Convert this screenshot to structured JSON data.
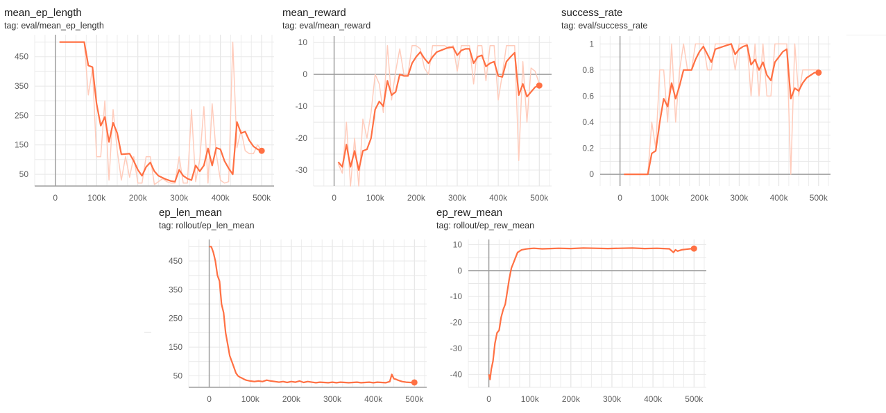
{
  "colors": {
    "line": "#ff7043",
    "raw_line": "#ffccbc",
    "grid": "#e0e0e0",
    "axis": "#9e9e9e",
    "tick_text": "#616161"
  },
  "chart_data": [
    {
      "type": "line",
      "title": "mean_ep_length",
      "tag": "tag: eval/mean_ep_length",
      "xlim": [
        -50000,
        530000
      ],
      "ylim": [
        10,
        525
      ],
      "xticks": [
        0,
        100000,
        200000,
        300000,
        400000,
        500000
      ],
      "xtick_labels": [
        "0",
        "100k",
        "200k",
        "300k",
        "400k",
        "500k"
      ],
      "yticks": [
        50,
        150,
        250,
        350,
        450
      ],
      "ytick_labels": [
        "50",
        "150",
        "250",
        "350",
        "450"
      ],
      "grid": true,
      "series": [
        {
          "role": "smoothed",
          "x": [
            10000,
            70000,
            80000,
            90000,
            100000,
            110000,
            120000,
            130000,
            140000,
            150000,
            160000,
            180000,
            190000,
            200000,
            210000,
            220000,
            230000,
            240000,
            250000,
            260000,
            270000,
            280000,
            290000,
            300000,
            310000,
            320000,
            330000,
            340000,
            350000,
            360000,
            370000,
            380000,
            390000,
            400000,
            410000,
            420000,
            430000,
            440000,
            450000,
            460000,
            470000,
            480000,
            490000,
            500000
          ],
          "y": [
            500,
            500,
            420,
            415,
            290,
            215,
            245,
            160,
            225,
            190,
            118,
            120,
            95,
            65,
            45,
            75,
            90,
            60,
            45,
            38,
            32,
            27,
            25,
            65,
            45,
            35,
            30,
            80,
            60,
            80,
            138,
            80,
            140,
            135,
            95,
            70,
            50,
            228,
            190,
            195,
            165,
            145,
            135,
            130
          ]
        },
        {
          "role": "raw",
          "x": [
            10000,
            70000,
            80000,
            90000,
            100000,
            110000,
            120000,
            130000,
            140000,
            150000,
            160000,
            170000,
            180000,
            190000,
            200000,
            210000,
            220000,
            230000,
            240000,
            250000,
            260000,
            270000,
            280000,
            290000,
            300000,
            310000,
            320000,
            330000,
            340000,
            350000,
            360000,
            370000,
            380000,
            390000,
            400000,
            410000,
            420000,
            430000,
            440000,
            450000,
            460000,
            470000,
            480000,
            490000,
            500000
          ],
          "y": [
            500,
            500,
            320,
            410,
            110,
            110,
            300,
            30,
            270,
            130,
            30,
            110,
            40,
            110,
            20,
            20,
            110,
            110,
            15,
            25,
            35,
            25,
            20,
            20,
            110,
            20,
            20,
            270,
            25,
            100,
            280,
            20,
            290,
            120,
            30,
            20,
            25,
            500,
            140,
            200,
            130,
            120,
            120,
            150,
            130
          ]
        }
      ]
    },
    {
      "type": "line",
      "title": "mean_reward",
      "tag": "tag: eval/mean_reward",
      "xlim": [
        -50000,
        530000
      ],
      "ylim": [
        -35,
        12
      ],
      "xticks": [
        0,
        100000,
        200000,
        300000,
        400000,
        500000
      ],
      "xtick_labels": [
        "0",
        "100k",
        "200k",
        "300k",
        "400k",
        "500k"
      ],
      "yticks": [
        -30,
        -20,
        -10,
        0,
        10
      ],
      "ytick_labels": [
        "-30",
        "-20",
        "-10",
        "0",
        "10"
      ],
      "grid": true,
      "series": [
        {
          "role": "smoothed",
          "x": [
            10000,
            20000,
            30000,
            40000,
            50000,
            60000,
            70000,
            80000,
            90000,
            100000,
            110000,
            120000,
            130000,
            140000,
            150000,
            160000,
            170000,
            180000,
            190000,
            200000,
            210000,
            220000,
            230000,
            240000,
            250000,
            260000,
            270000,
            280000,
            290000,
            300000,
            310000,
            320000,
            330000,
            340000,
            350000,
            360000,
            370000,
            380000,
            390000,
            400000,
            410000,
            420000,
            430000,
            440000,
            450000,
            460000,
            470000,
            480000,
            490000,
            500000
          ],
          "y": [
            -27.5,
            -29,
            -22,
            -29,
            -24,
            -30,
            -24,
            -23.5,
            -20,
            -11,
            -8.5,
            -10,
            -2,
            -6.5,
            -5.5,
            0,
            -0.5,
            -0.5,
            3.5,
            5.5,
            7,
            5,
            3.5,
            5.5,
            7,
            7.5,
            8,
            8.5,
            8.5,
            6,
            7.5,
            8,
            8,
            3.5,
            5.5,
            6,
            2.5,
            3.5,
            4,
            -0.5,
            -0.8,
            4,
            5.5,
            6.8,
            -6.5,
            -3,
            -7,
            -5.5,
            -4,
            -3.5
          ]
        },
        {
          "role": "raw",
          "x": [
            10000,
            20000,
            30000,
            40000,
            50000,
            60000,
            70000,
            80000,
            90000,
            100000,
            110000,
            120000,
            130000,
            140000,
            150000,
            160000,
            170000,
            180000,
            190000,
            200000,
            210000,
            220000,
            230000,
            240000,
            250000,
            260000,
            270000,
            280000,
            290000,
            300000,
            310000,
            320000,
            330000,
            340000,
            350000,
            360000,
            370000,
            380000,
            390000,
            400000,
            410000,
            420000,
            430000,
            440000,
            450000,
            460000,
            470000,
            480000,
            490000,
            500000
          ],
          "y": [
            -28,
            -31,
            -15,
            -35,
            -20,
            -35,
            -14,
            -20,
            -12,
            0,
            -3,
            -12,
            9,
            -8,
            1,
            8,
            0,
            0,
            9,
            9,
            8,
            2,
            0,
            9,
            9,
            9,
            9,
            8,
            9,
            1,
            9,
            9,
            9,
            -3,
            9,
            9,
            -2,
            9,
            9,
            -8,
            0,
            9,
            9,
            9,
            -27,
            4,
            -15,
            2,
            1,
            -3
          ]
        }
      ]
    },
    {
      "type": "line",
      "title": "success_rate",
      "tag": "tag: eval/success_rate",
      "xlim": [
        -50000,
        530000
      ],
      "ylim": [
        -0.09,
        1.06
      ],
      "xticks": [
        0,
        100000,
        200000,
        300000,
        400000,
        500000
      ],
      "xtick_labels": [
        "0",
        "100k",
        "200k",
        "300k",
        "400k",
        "500k"
      ],
      "yticks": [
        0,
        0.2,
        0.4,
        0.6,
        0.8,
        1
      ],
      "ytick_labels": [
        "0",
        "0.2",
        "0.4",
        "0.6",
        "0.8",
        "1"
      ],
      "grid": true,
      "series": [
        {
          "role": "smoothed",
          "x": [
            10000,
            70000,
            80000,
            90000,
            100000,
            110000,
            120000,
            130000,
            140000,
            150000,
            160000,
            170000,
            180000,
            190000,
            200000,
            210000,
            220000,
            230000,
            240000,
            250000,
            260000,
            270000,
            280000,
            290000,
            300000,
            310000,
            320000,
            330000,
            340000,
            350000,
            360000,
            370000,
            380000,
            390000,
            400000,
            410000,
            420000,
            430000,
            440000,
            450000,
            460000,
            470000,
            480000,
            490000,
            500000
          ],
          "y": [
            0,
            0,
            0.16,
            0.18,
            0.4,
            0.58,
            0.52,
            0.7,
            0.58,
            0.68,
            0.8,
            0.8,
            0.8,
            0.88,
            0.94,
            0.98,
            0.92,
            0.86,
            0.96,
            0.97,
            0.98,
            0.99,
            1.0,
            0.92,
            0.96,
            0.98,
            0.99,
            0.84,
            0.88,
            0.8,
            0.86,
            0.76,
            0.72,
            0.86,
            0.9,
            0.94,
            0.96,
            0.58,
            0.66,
            0.64,
            0.7,
            0.74,
            0.76,
            0.78,
            0.78
          ]
        },
        {
          "role": "raw",
          "x": [
            10000,
            70000,
            80000,
            90000,
            100000,
            110000,
            120000,
            130000,
            140000,
            150000,
            160000,
            170000,
            180000,
            190000,
            200000,
            210000,
            220000,
            230000,
            240000,
            250000,
            260000,
            270000,
            280000,
            290000,
            300000,
            310000,
            320000,
            330000,
            340000,
            350000,
            360000,
            370000,
            380000,
            390000,
            400000,
            410000,
            420000,
            430000,
            440000,
            450000,
            460000,
            470000,
            480000,
            490000,
            500000
          ],
          "y": [
            0,
            0,
            0.4,
            0.2,
            0.8,
            0.8,
            0.4,
            1.0,
            0.4,
            0.8,
            1.0,
            0.8,
            0.8,
            1.0,
            1.0,
            1.0,
            0.8,
            0.8,
            1.0,
            1.0,
            1.0,
            1.0,
            1.0,
            0.8,
            1.0,
            1.0,
            1.0,
            0.6,
            1.0,
            0.6,
            1.0,
            0.6,
            0.6,
            1.0,
            1.0,
            1.0,
            1.0,
            0.0,
            1.0,
            0.6,
            0.8,
            0.8,
            0.8,
            0.8,
            0.8
          ]
        }
      ]
    },
    {
      "type": "line",
      "title": "ep_len_mean",
      "tag": "tag: rollout/ep_len_mean",
      "xlim": [
        -50000,
        530000
      ],
      "ylim": [
        10,
        525
      ],
      "xticks": [
        0,
        100000,
        200000,
        300000,
        400000,
        500000
      ],
      "xtick_labels": [
        "0",
        "100k",
        "200k",
        "300k",
        "400k",
        "500k"
      ],
      "yticks": [
        50,
        150,
        250,
        350,
        450
      ],
      "ytick_labels": [
        "50",
        "150",
        "250",
        "350",
        "450"
      ],
      "grid": true,
      "series": [
        {
          "role": "smoothed",
          "x": [
            0,
            5000,
            10000,
            15000,
            20000,
            25000,
            30000,
            35000,
            40000,
            45000,
            50000,
            55000,
            60000,
            65000,
            70000,
            75000,
            80000,
            85000,
            90000,
            100000,
            110000,
            120000,
            130000,
            140000,
            150000,
            160000,
            170000,
            180000,
            190000,
            200000,
            210000,
            220000,
            230000,
            240000,
            250000,
            260000,
            270000,
            280000,
            290000,
            300000,
            310000,
            320000,
            330000,
            340000,
            350000,
            360000,
            370000,
            380000,
            390000,
            400000,
            410000,
            420000,
            430000,
            440000,
            445000,
            450000,
            455000,
            460000,
            470000,
            480000,
            490000,
            500000
          ],
          "y": [
            500,
            500,
            480,
            450,
            400,
            380,
            300,
            270,
            200,
            160,
            120,
            100,
            80,
            60,
            50,
            45,
            42,
            38,
            35,
            32,
            30,
            32,
            30,
            35,
            32,
            30,
            28,
            30,
            27,
            30,
            28,
            32,
            27,
            30,
            28,
            26,
            28,
            27,
            26,
            28,
            26,
            28,
            27,
            26,
            27,
            28,
            26,
            27,
            28,
            26,
            28,
            27,
            26,
            30,
            55,
            40,
            38,
            35,
            30,
            28,
            27,
            27
          ]
        }
      ]
    },
    {
      "type": "line",
      "title": "ep_rew_mean",
      "tag": "tag: rollout/ep_rew_mean",
      "xlim": [
        -50000,
        530000
      ],
      "ylim": [
        -45,
        12
      ],
      "xticks": [
        0,
        100000,
        200000,
        300000,
        400000,
        500000
      ],
      "xtick_labels": [
        "0",
        "100k",
        "200k",
        "300k",
        "400k",
        "500k"
      ],
      "yticks": [
        -40,
        -30,
        -20,
        -10,
        0,
        10
      ],
      "ytick_labels": [
        "-40",
        "-30",
        "-20",
        "-10",
        "0",
        "10"
      ],
      "grid": true,
      "series": [
        {
          "role": "smoothed",
          "x": [
            0,
            3000,
            6000,
            10000,
            15000,
            20000,
            25000,
            30000,
            35000,
            40000,
            45000,
            50000,
            55000,
            60000,
            65000,
            70000,
            75000,
            80000,
            90000,
            100000,
            110000,
            130000,
            150000,
            170000,
            200000,
            230000,
            260000,
            290000,
            320000,
            350000,
            380000,
            410000,
            440000,
            450000,
            455000,
            460000,
            470000,
            480000,
            490000,
            500000
          ],
          "y": [
            -40,
            -42,
            -38,
            -35,
            -28,
            -24,
            -23,
            -18,
            -15,
            -13,
            -8,
            -3,
            1,
            3,
            5,
            7,
            7.5,
            8,
            8.3,
            8.5,
            8.6,
            8.4,
            8.5,
            8.6,
            8.5,
            8.7,
            8.6,
            8.5,
            8.6,
            8.7,
            8.5,
            8.6,
            8.4,
            7,
            8,
            7.5,
            8,
            8.2,
            8.4,
            8.5
          ]
        }
      ]
    }
  ]
}
